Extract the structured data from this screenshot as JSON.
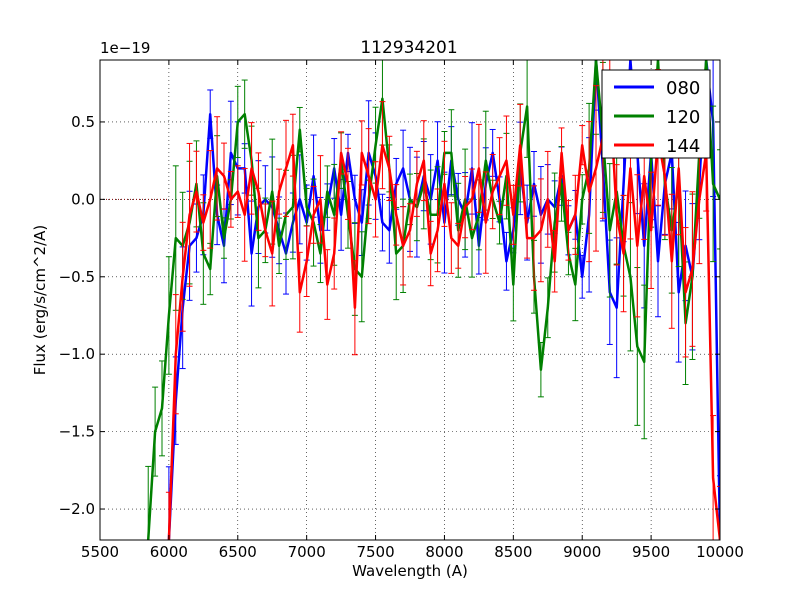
{
  "chart_data": {
    "type": "line",
    "title": "112934201",
    "xlabel": "Wavelength (A)",
    "ylabel": "Flux (erg/s/cm^2/A)",
    "offset_text": "1e−19",
    "xlim": [
      5500,
      10000
    ],
    "ylim": [
      -2.2,
      0.9
    ],
    "x_ticks": [
      5500,
      6000,
      6500,
      7000,
      7500,
      8000,
      8500,
      9000,
      9500,
      10000
    ],
    "x_tick_labels": [
      "5500",
      "6000",
      "6500",
      "7000",
      "7500",
      "8000",
      "8500",
      "9000",
      "9500",
      "10000"
    ],
    "y_ticks": [
      -2.0,
      -1.5,
      -1.0,
      -0.5,
      0.0,
      0.5
    ],
    "y_tick_labels": [
      "−2.0",
      "−1.5",
      "−1.0",
      "−0.5",
      "0.0",
      "0.5"
    ],
    "grid": true,
    "legend_position": "top-right",
    "reference_line": {
      "x": [
        5500,
        6000
      ],
      "y": 0.0,
      "color": "#800000"
    },
    "series": [
      {
        "name": "080",
        "color": "#0000ff",
        "x": [
          6000,
          6050,
          6100,
          6150,
          6200,
          6250,
          6300,
          6350,
          6400,
          6450,
          6500,
          6550,
          6600,
          6650,
          6700,
          6750,
          6800,
          6850,
          6900,
          6950,
          7000,
          7050,
          7100,
          7150,
          7200,
          7250,
          7300,
          7350,
          7400,
          7450,
          7500,
          7550,
          7600,
          7650,
          7700,
          7750,
          7800,
          7850,
          7900,
          7950,
          8000,
          8050,
          8100,
          8150,
          8200,
          8250,
          8300,
          8350,
          8400,
          8450,
          8500,
          8550,
          8600,
          8650,
          8700,
          8750,
          8800,
          8850,
          8900,
          8950,
          9000,
          9050,
          9100,
          9150,
          9200,
          9250,
          9300,
          9350,
          9400,
          9450,
          9500,
          9550,
          9600,
          9650,
          9700,
          9750,
          9800,
          9850,
          9900,
          9950,
          10000
        ],
        "y": [
          -2.2,
          -1.3,
          -0.7,
          -0.3,
          -0.25,
          -0.1,
          0.55,
          -0.1,
          -0.3,
          0.3,
          0.2,
          0.2,
          -0.35,
          -0.05,
          0.0,
          -0.05,
          -0.2,
          -0.35,
          -0.15,
          0.0,
          -0.15,
          0.15,
          -0.2,
          -0.05,
          0.2,
          -0.1,
          0.3,
          0.0,
          -0.15,
          0.3,
          0.15,
          -0.15,
          -0.2,
          0.1,
          0.2,
          0.0,
          -0.05,
          0.15,
          0.0,
          0.25,
          -0.15,
          0.25,
          0.0,
          -0.1,
          0.2,
          -0.3,
          0.1,
          0.3,
          0.0,
          -0.4,
          -0.2,
          0.2,
          -0.15,
          0.1,
          -0.1,
          0.0,
          -0.05,
          0.15,
          -0.2,
          -0.1,
          -0.5,
          -0.1,
          0.9,
          0.2,
          -0.6,
          -0.7,
          0.1,
          0.9,
          0.3,
          -0.3,
          0.3,
          -0.4,
          0.1,
          0.3,
          -0.6,
          -0.3,
          -0.5,
          0.1,
          0.9,
          0.5,
          -2.2
        ]
      },
      {
        "name": "120",
        "color": "#008000",
        "x": [
          5850,
          5900,
          5950,
          6000,
          6050,
          6100,
          6150,
          6200,
          6250,
          6300,
          6350,
          6400,
          6450,
          6500,
          6550,
          6600,
          6650,
          6700,
          6750,
          6800,
          6850,
          6900,
          6950,
          7000,
          7050,
          7100,
          7150,
          7200,
          7250,
          7300,
          7350,
          7400,
          7450,
          7500,
          7550,
          7600,
          7650,
          7700,
          7750,
          7800,
          7850,
          7900,
          7950,
          8000,
          8050,
          8100,
          8150,
          8200,
          8250,
          8300,
          8350,
          8400,
          8450,
          8500,
          8550,
          8600,
          8650,
          8700,
          8750,
          8800,
          8850,
          8900,
          8950,
          9000,
          9050,
          9100,
          9150,
          9200,
          9250,
          9300,
          9350,
          9400,
          9450,
          9500,
          9550,
          9600,
          9650,
          9700,
          9750,
          9800,
          9850,
          9900,
          9950,
          10000
        ],
        "y": [
          -2.2,
          -1.5,
          -1.35,
          -0.75,
          -0.25,
          -0.3,
          -0.15,
          0.1,
          -0.35,
          -0.45,
          0.15,
          -0.25,
          0.0,
          0.5,
          0.55,
          0.25,
          -0.25,
          -0.2,
          0.05,
          -0.3,
          -0.1,
          -0.05,
          0.45,
          -0.05,
          -0.15,
          -0.35,
          0.05,
          -0.1,
          0.25,
          -0.1,
          -0.45,
          -0.5,
          0.0,
          0.35,
          0.65,
          0.2,
          -0.35,
          -0.3,
          0.0,
          -0.05,
          0.1,
          -0.1,
          -0.1,
          0.3,
          0.3,
          -0.2,
          0.0,
          -0.25,
          -0.1,
          0.25,
          0.0,
          -0.15,
          0.15,
          -0.55,
          0.3,
          0.6,
          -0.5,
          -1.1,
          -0.7,
          -0.15,
          0.1,
          -0.35,
          -0.55,
          0.0,
          0.2,
          0.9,
          0.4,
          -0.2,
          0.05,
          -0.3,
          -0.5,
          -0.95,
          -1.05,
          0.25,
          0.9,
          0.1,
          -0.2,
          0.1,
          -0.8,
          -0.5,
          0.3,
          0.9,
          0.1,
          0.0
        ]
      },
      {
        "name": "144",
        "color": "#ff0000",
        "x": [
          6000,
          6050,
          6100,
          6150,
          6200,
          6250,
          6300,
          6350,
          6400,
          6450,
          6500,
          6550,
          6600,
          6650,
          6700,
          6750,
          6800,
          6850,
          6900,
          6950,
          7000,
          7050,
          7100,
          7150,
          7200,
          7250,
          7300,
          7350,
          7400,
          7450,
          7500,
          7550,
          7600,
          7650,
          7700,
          7750,
          7800,
          7850,
          7900,
          7950,
          8000,
          8050,
          8100,
          8150,
          8200,
          8250,
          8300,
          8350,
          8400,
          8450,
          8500,
          8550,
          8600,
          8650,
          8700,
          8750,
          8800,
          8850,
          8900,
          8950,
          9000,
          9050,
          9100,
          9150,
          9200,
          9250,
          9300,
          9350,
          9400,
          9450,
          9500,
          9550,
          9600,
          9650,
          9700,
          9750,
          9800,
          9850,
          9900,
          9950,
          10000
        ],
        "y": [
          -2.2,
          -1.0,
          -0.5,
          -0.1,
          0.05,
          -0.15,
          0.0,
          0.2,
          0.15,
          0.0,
          0.05,
          -0.1,
          0.2,
          0.05,
          -0.2,
          -0.35,
          0.05,
          0.2,
          0.35,
          -0.6,
          -0.4,
          -0.1,
          0.0,
          -0.55,
          -0.35,
          0.3,
          0.1,
          -0.7,
          0.3,
          0.15,
          0.0,
          0.35,
          0.2,
          -0.1,
          -0.3,
          -0.2,
          0.1,
          0.25,
          -0.35,
          -0.2,
          0.1,
          -0.25,
          -0.3,
          -0.05,
          0.0,
          0.2,
          -0.15,
          0.05,
          0.15,
          0.25,
          -0.1,
          0.35,
          -0.25,
          -0.25,
          -0.2,
          0.0,
          -0.4,
          0.3,
          -0.2,
          -0.1,
          0.35,
          0.05,
          0.2,
          0.4,
          0.7,
          -0.1,
          -0.35,
          0.2,
          -0.3,
          0.15,
          -0.2,
          0.4,
          0.15,
          -0.4,
          0.2,
          -0.6,
          -0.45,
          0.0,
          0.3,
          -1.8,
          -2.2
        ]
      }
    ]
  }
}
